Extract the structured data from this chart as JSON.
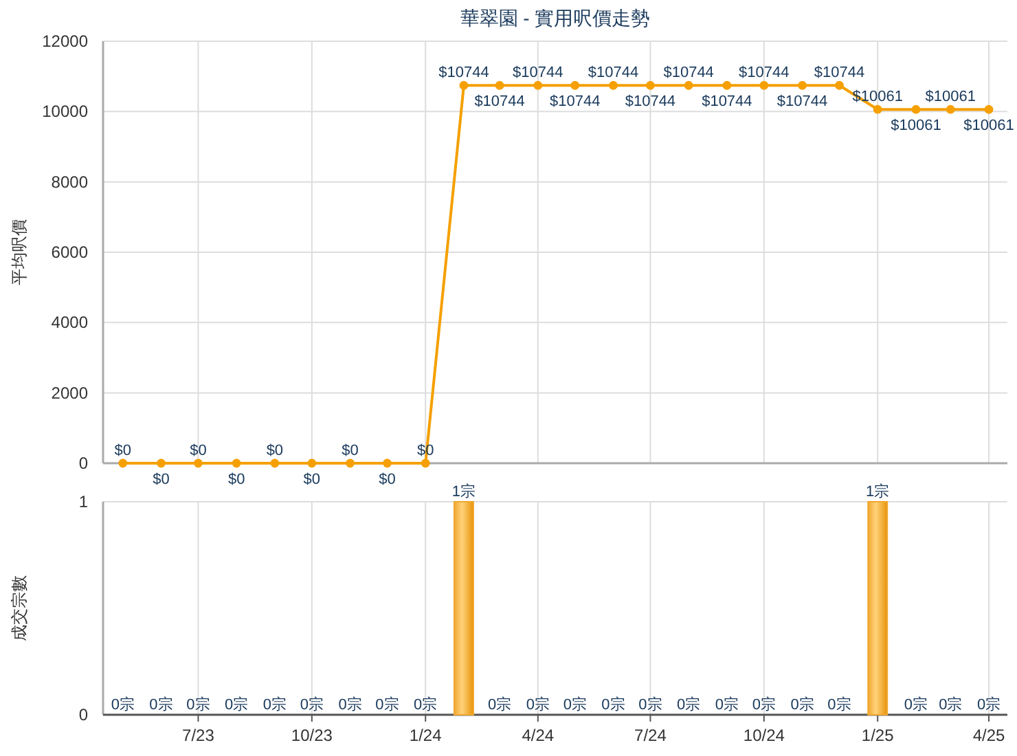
{
  "chart_data": [
    {
      "type": "line",
      "title": "華翠園 - 實用呎價走勢",
      "ylabel": "平均呎價",
      "x": [
        "2023-05",
        "2023-06",
        "2023-07",
        "2023-08",
        "2023-09",
        "2023-10",
        "2023-11",
        "2023-12",
        "2024-01",
        "2024-02",
        "2024-03",
        "2024-04",
        "2024-05",
        "2024-06",
        "2024-07",
        "2024-08",
        "2024-09",
        "2024-10",
        "2024-11",
        "2024-12",
        "2025-01",
        "2025-02",
        "2025-03",
        "2025-04"
      ],
      "series": [
        {
          "color": "#f5a000",
          "values": [
            0,
            0,
            0,
            0,
            0,
            0,
            0,
            0,
            0,
            10744,
            10744,
            10744,
            10744,
            10744,
            10744,
            10744,
            10744,
            10744,
            10744,
            10744,
            10061,
            10061,
            10061,
            10061
          ],
          "value_labels": [
            "$0",
            "$0",
            "$0",
            "$0",
            "$0",
            "$0",
            "$0",
            "$0",
            "$0",
            "$10744",
            "$10744",
            "$10744",
            "$10744",
            "$10744",
            "$10744",
            "$10744",
            "$10744",
            "$10744",
            "$10744",
            "$10744",
            "$10061",
            "$10061",
            "$10061",
            "$10061"
          ]
        }
      ],
      "xlim": [
        "2023-04-15",
        "2025-04-16"
      ],
      "xticks": [
        {
          "value": "2023-07",
          "label": null
        },
        {
          "value": "2023-10",
          "label": null
        },
        {
          "value": "2024-01",
          "label": null
        },
        {
          "value": "2024-04",
          "label": null
        },
        {
          "value": "2024-07",
          "label": null
        },
        {
          "value": "2024-10",
          "label": null
        },
        {
          "value": "2025-01",
          "label": null
        },
        {
          "value": "2025-04",
          "label": null
        }
      ],
      "ylim": [
        0,
        12000
      ],
      "yticks": [
        0,
        2000,
        4000,
        6000,
        8000,
        10000,
        12000
      ],
      "tick_labels": "y",
      "grid": true,
      "marker": "circle"
    },
    {
      "type": "bar",
      "ylabel": "成交宗數",
      "x": [
        "2023-05",
        "2023-06",
        "2023-07",
        "2023-08",
        "2023-09",
        "2023-10",
        "2023-11",
        "2023-12",
        "2024-01",
        "2024-02",
        "2024-03",
        "2024-04",
        "2024-05",
        "2024-06",
        "2024-07",
        "2024-08",
        "2024-09",
        "2024-10",
        "2024-11",
        "2024-12",
        "2025-01",
        "2025-02",
        "2025-03",
        "2025-04"
      ],
      "series": [
        {
          "color": "#f0a830",
          "values": [
            0,
            0,
            0,
            0,
            0,
            0,
            0,
            0,
            0,
            1,
            0,
            0,
            0,
            0,
            0,
            0,
            0,
            0,
            0,
            0,
            1,
            0,
            0,
            0
          ],
          "value_labels": [
            "0宗",
            "0宗",
            "0宗",
            "0宗",
            "0宗",
            "0宗",
            "0宗",
            "0宗",
            "0宗",
            "1宗",
            "0宗",
            "0宗",
            "0宗",
            "0宗",
            "0宗",
            "0宗",
            "0宗",
            "0宗",
            "0宗",
            "0宗",
            "1宗",
            "0宗",
            "0宗",
            "0宗"
          ]
        }
      ],
      "xlim": [
        "2023-04-15",
        "2025-04-16"
      ],
      "xticks": [
        {
          "value": "2023-07",
          "label": "7/23"
        },
        {
          "value": "2023-10",
          "label": "10/23"
        },
        {
          "value": "2024-01",
          "label": "1/24"
        },
        {
          "value": "2024-04",
          "label": "4/24"
        },
        {
          "value": "2024-07",
          "label": "7/24"
        },
        {
          "value": "2024-10",
          "label": "10/24"
        },
        {
          "value": "2025-01",
          "label": "1/25"
        },
        {
          "value": "2025-04",
          "label": "4/25"
        }
      ],
      "ylim": [
        0,
        1
      ],
      "yticks": [
        0,
        1
      ],
      "grid": true
    }
  ]
}
